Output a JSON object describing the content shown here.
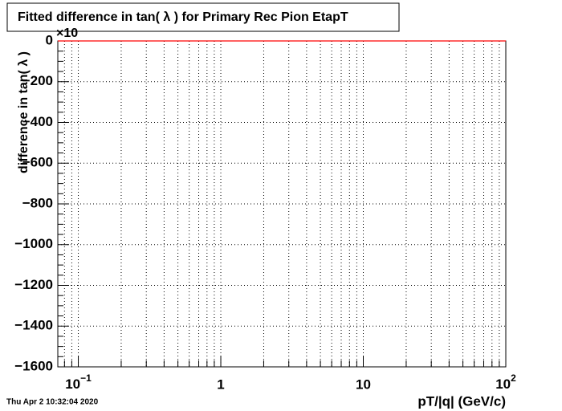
{
  "chart_data": {
    "type": "line",
    "title": "Fitted difference in tan( λ ) for Primary Rec Pion EtapT",
    "x_label": "pT/|q| (GeV/c)",
    "y_label": "difference in tan( λ )",
    "y_multiplier": "×10",
    "timestamp": "Thu Apr  2 10:32:04 2020",
    "x_log": true,
    "grid": true,
    "x": [
      0.0718,
      100
    ],
    "series": [
      {
        "color": "#ff0000",
        "values": [
          0,
          0
        ]
      }
    ],
    "xlim": [
      0.0718,
      100
    ],
    "ylim": [
      -1600,
      0
    ],
    "xticks": [
      {
        "value": 0.1,
        "label": "10",
        "exponent": "−1"
      },
      1,
      10,
      {
        "value": 100,
        "label": "10",
        "exponent": "2"
      }
    ],
    "yticks": [
      {
        "value": -1600,
        "label": "−1600"
      },
      {
        "value": -1400,
        "label": "−1400"
      },
      {
        "value": -1200,
        "label": "−1200"
      },
      {
        "value": -1000,
        "label": "−1000"
      },
      {
        "value": -800,
        "label": "−800"
      },
      {
        "value": -600,
        "label": "−600"
      },
      {
        "value": -400,
        "label": "−400"
      },
      {
        "value": -200,
        "label": "−200"
      },
      0
    ]
  }
}
